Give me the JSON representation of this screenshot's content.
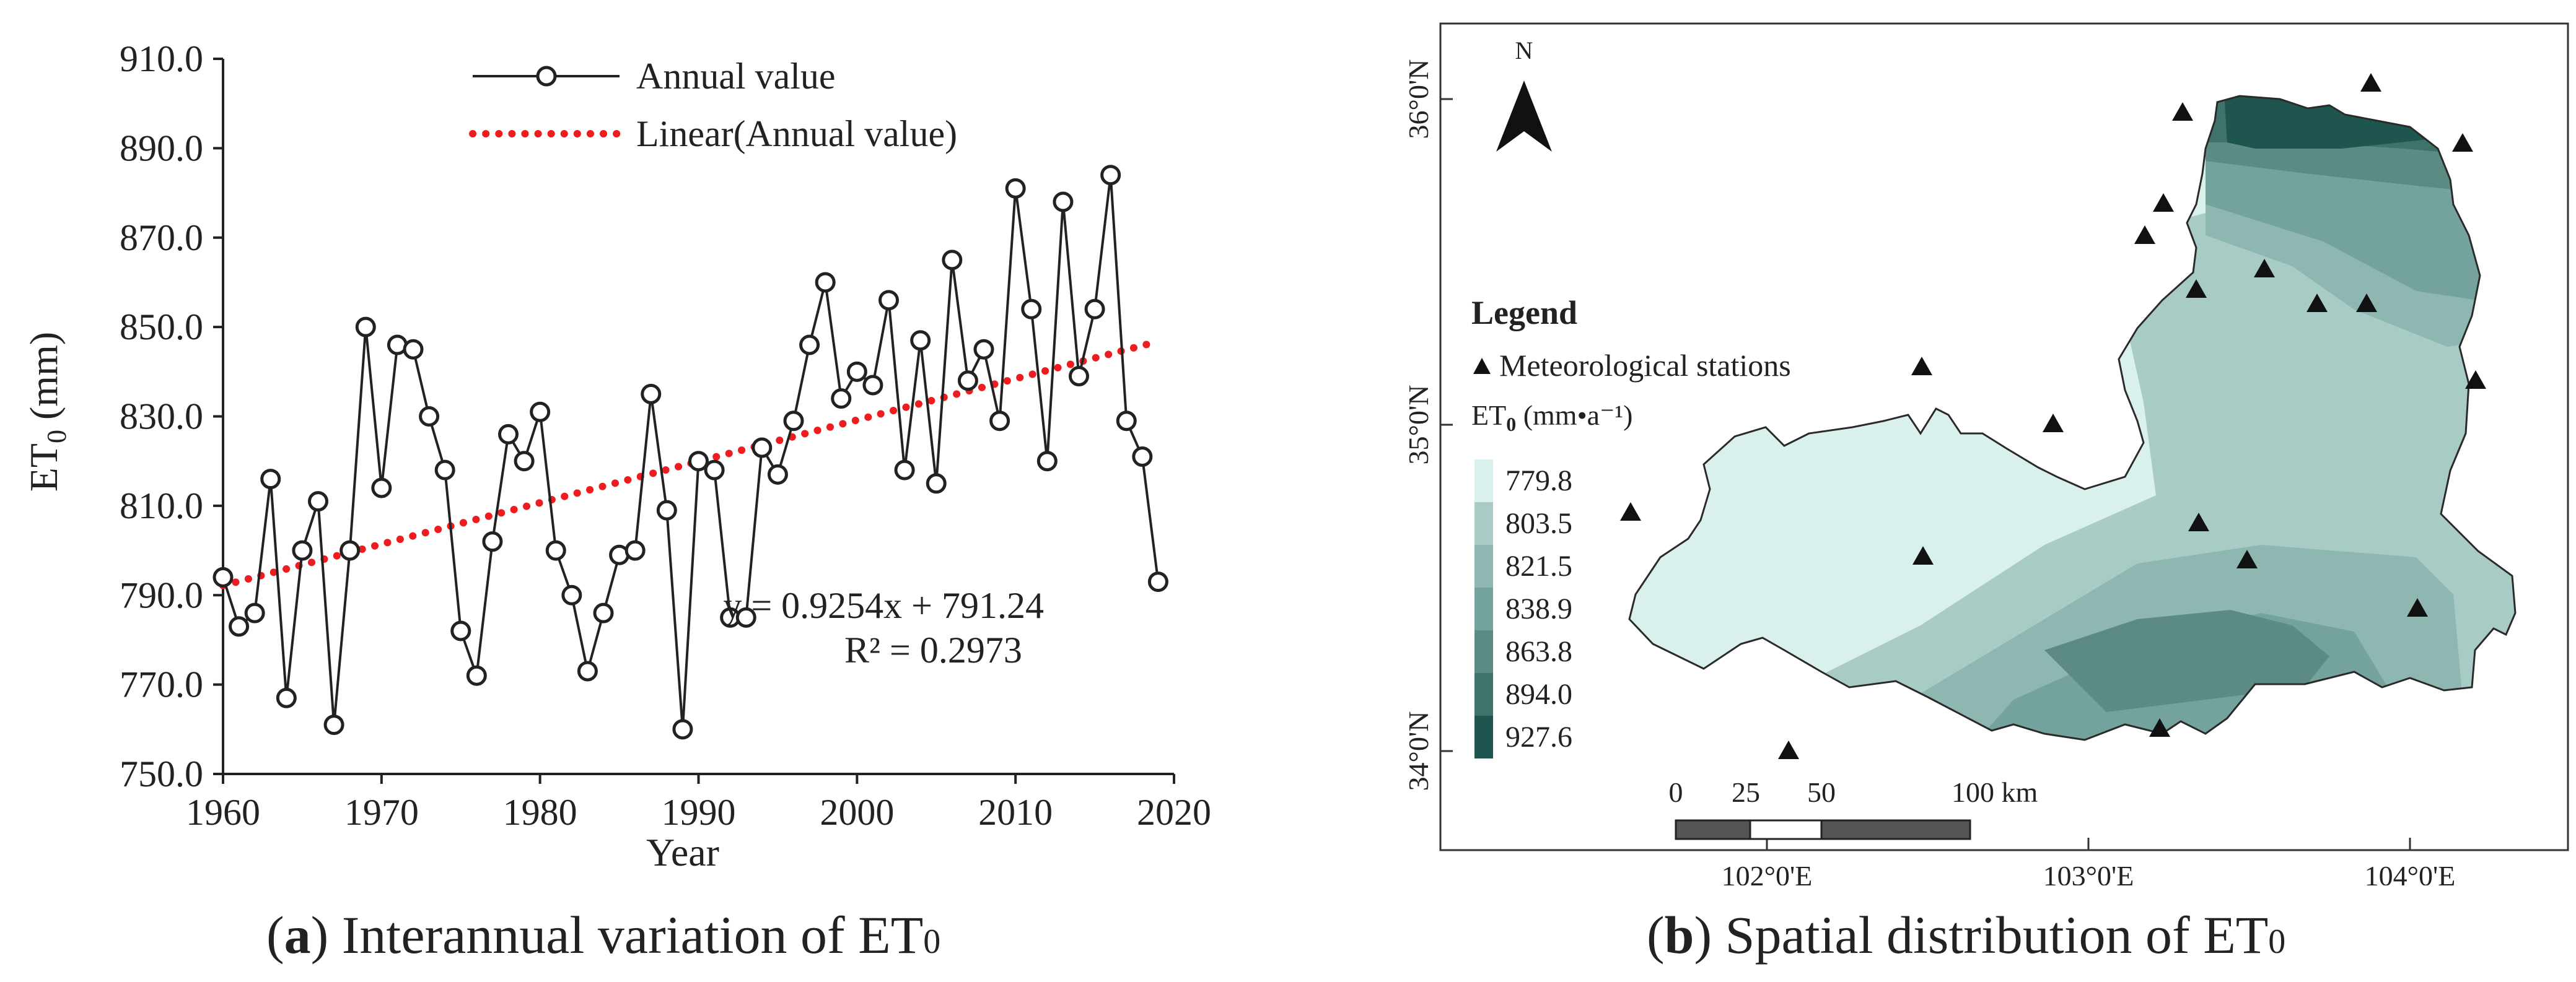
{
  "chart_data": [
    {
      "type": "line",
      "title": "",
      "xlabel": "Year",
      "ylabel_main": "ET",
      "ylabel_sub": "0",
      "ylabel_unit": " (mm)",
      "xlim": [
        1960,
        2020
      ],
      "ylim": [
        750,
        910
      ],
      "xticks": [
        1960,
        1970,
        1980,
        1990,
        2000,
        2010,
        2020
      ],
      "yticks": [
        750,
        770,
        790,
        810,
        830,
        850,
        870,
        890,
        910
      ],
      "ytick_labels": [
        "750.0",
        "770.0",
        "790.0",
        "810.0",
        "830.0",
        "850.0",
        "870.0",
        "890.0",
        "910.0"
      ],
      "grid": false,
      "legend_position": "top-center",
      "series": [
        {
          "name": "Annual value",
          "style": "line-with-open-circles",
          "color": "#222222",
          "x": [
            1960,
            1961,
            1962,
            1963,
            1964,
            1965,
            1966,
            1967,
            1968,
            1969,
            1970,
            1971,
            1972,
            1973,
            1974,
            1975,
            1976,
            1977,
            1978,
            1979,
            1980,
            1981,
            1982,
            1983,
            1984,
            1985,
            1986,
            1987,
            1988,
            1989,
            1990,
            1991,
            1992,
            1993,
            1994,
            1995,
            1996,
            1997,
            1998,
            1999,
            2000,
            2001,
            2002,
            2003,
            2004,
            2005,
            2006,
            2007,
            2008,
            2009,
            2010,
            2011,
            2012,
            2013,
            2014,
            2015,
            2016,
            2017,
            2018,
            2019
          ],
          "values": [
            794,
            783,
            786,
            816,
            767,
            800,
            811,
            761,
            800,
            850,
            814,
            846,
            845,
            830,
            818,
            782,
            772,
            802,
            826,
            820,
            831,
            800,
            790,
            773,
            786,
            799,
            800,
            835,
            809,
            760,
            820,
            818,
            785,
            785,
            823,
            817,
            829,
            846,
            860,
            834,
            840,
            837,
            856,
            818,
            847,
            815,
            865,
            838,
            845,
            829,
            881,
            854,
            820,
            878,
            839,
            854,
            884,
            829,
            821,
            793
          ]
        },
        {
          "name": "Linear(Annual value)",
          "style": "dotted-trendline",
          "color": "#ee1c1c",
          "slope": 0.9254,
          "intercept": 791.24,
          "x_start_index": 1,
          "x_end_index": 60
        }
      ],
      "annotations": [
        "y = 0.9254x + 791.24",
        "R² = 0.2973"
      ]
    },
    {
      "type": "map",
      "title": "Spatial distribution of ET0",
      "north_label": "N",
      "legend_title": "Legend",
      "station_label": "Meteorological stations",
      "unit_main": "ET",
      "unit_sub": "0",
      "unit_rest": " (mm•a⁻¹)",
      "classes": [
        {
          "label": "779.8",
          "color": "#daf0ec"
        },
        {
          "label": "803.5",
          "color": "#a9cbc6"
        },
        {
          "label": "821.5",
          "color": "#8eb7b1"
        },
        {
          "label": "838.9",
          "color": "#74a39d"
        },
        {
          "label": "863.8",
          "color": "#5c8b84"
        },
        {
          "label": "894.0",
          "color": "#3e726b"
        },
        {
          "label": "927.6",
          "color": "#1e554f"
        }
      ],
      "lat_labels": [
        "36°0'N",
        "35°0'N",
        "34°0'N"
      ],
      "lon_labels": [
        "102°0'E",
        "103°0'E",
        "104°0'E"
      ],
      "scale_labels": [
        "0",
        "25",
        "50",
        "100 km"
      ]
    }
  ],
  "captions": {
    "a_letter": "a",
    "a_text": " Interannual variation of ET",
    "a_sub": "0",
    "b_letter": "b",
    "b_text": " Spatial distribution of ET",
    "b_sub": "0"
  }
}
